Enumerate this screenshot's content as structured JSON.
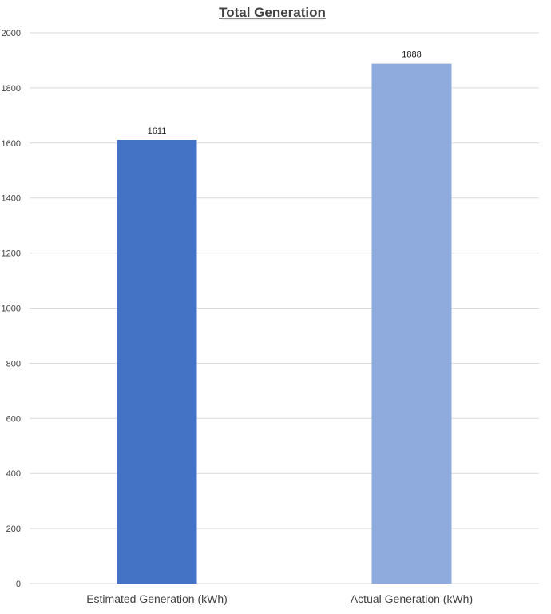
{
  "chart_data": {
    "type": "bar",
    "title": "Total Generation",
    "categories": [
      "Estimated Generation (kWh)",
      "Actual Generation (kWh)"
    ],
    "values": [
      1611,
      1888
    ],
    "data_labels": [
      "1611",
      "1888"
    ],
    "colors": [
      "#4472C4",
      "#8FAADC"
    ],
    "ylim": [
      0,
      2000
    ],
    "yticks": [
      0,
      200,
      400,
      600,
      800,
      1000,
      1200,
      1400,
      1600,
      1800,
      2000
    ],
    "ytick_labels": [
      "0",
      "200",
      "400",
      "600",
      "800",
      "1000",
      "1200",
      "1400",
      "1600",
      "1800",
      "2000"
    ],
    "xlabel": "",
    "ylabel": "",
    "grid": true,
    "legend": "none"
  }
}
